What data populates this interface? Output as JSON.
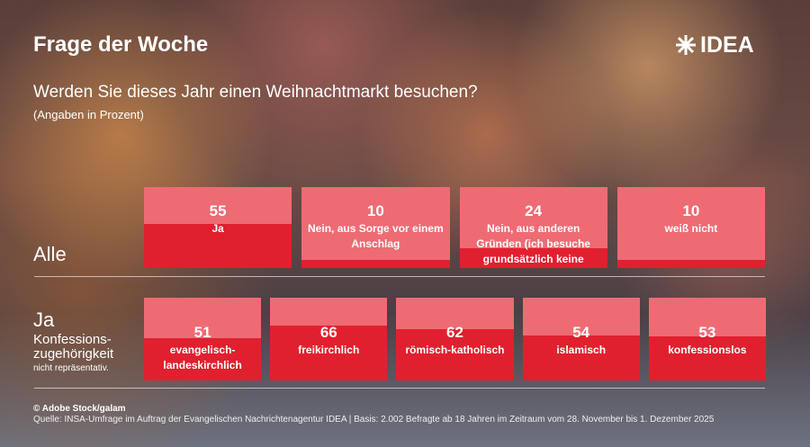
{
  "header": {
    "title": "Frage der Woche",
    "logo": "IDEA"
  },
  "chart_data": [
    {
      "type": "fill",
      "title": "Werden Sie dieses Jahr einen Weihnachtmarkt besuchen?",
      "subtitle": "(Angaben in Prozent)",
      "row_label": "Alle",
      "categories": [
        "Ja",
        "Nein, aus Sorge vor einem Anschlag",
        "Nein, aus anderen Gründen (ich besuche grundsätzlich keine Weihnachtsmärkte)",
        "weiß nicht"
      ],
      "values": [
        55,
        10,
        24,
        10
      ],
      "color": "#e1202f",
      "background": "#ee6b74",
      "ylim": [
        0,
        100
      ]
    },
    {
      "type": "fill",
      "row_label": "Ja",
      "row_sublabel": "Konfessions-zugehörigkeit",
      "note": "nicht repräsentativ.",
      "categories": [
        "evangelisch-landeskirchlich",
        "freikirchlich",
        "römisch-katholisch",
        "islamisch",
        "konfessionslos"
      ],
      "values": [
        51,
        66,
        62,
        54,
        53
      ],
      "color": "#e1202f",
      "background": "#ee6b74",
      "ylim": [
        0,
        100
      ]
    }
  ],
  "footer": {
    "credit": "© Adobe Stock/galam",
    "source": "Quelle: INSA-Umfrage im Auftrag der Evangelischen Nachrichtenagentur IDEA | Basis: 2.002 Befragte ab 18 Jahren im Zeitraum vom 28. November bis 1. Dezember 2025"
  }
}
